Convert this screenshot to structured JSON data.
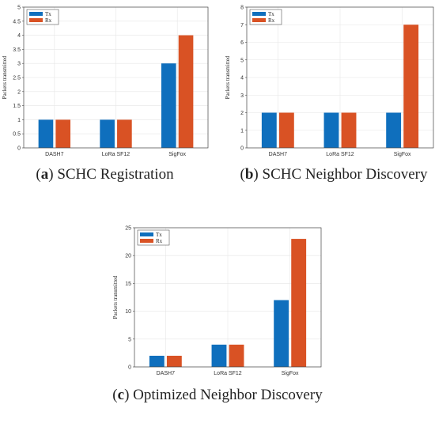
{
  "figure": {
    "panels": [
      {
        "letter": "a",
        "caption_text": "SCHC Registration"
      },
      {
        "letter": "b",
        "caption_text": "SCHC Neighbor Discovery"
      },
      {
        "letter": "c",
        "caption_text": "Optimized Neighbor Discovery"
      }
    ]
  },
  "colors": {
    "tx": "#0f6fbd",
    "rx": "#d95224",
    "grid": "#e6e6e6",
    "axis": "#444444"
  },
  "chart_data": [
    {
      "type": "bar",
      "categories": [
        "DASH7",
        "LoRa SF12",
        "SigFox"
      ],
      "series": [
        {
          "name": "Tx",
          "values": [
            1,
            1,
            3
          ]
        },
        {
          "name": "Rx",
          "values": [
            1,
            1,
            4
          ]
        }
      ],
      "ylabel": "Packets transmitted",
      "ylim": [
        0,
        5
      ],
      "yticks": [
        "0",
        "0.5",
        "1",
        "1.5",
        "2",
        "2.5",
        "3",
        "3.5",
        "4",
        "4.5",
        "5"
      ],
      "grid": true,
      "legend": "top-left"
    },
    {
      "type": "bar",
      "categories": [
        "DASH7",
        "LoRa SF12",
        "SigFox"
      ],
      "series": [
        {
          "name": "Tx",
          "values": [
            2,
            2,
            2
          ]
        },
        {
          "name": "Rx",
          "values": [
            2,
            2,
            7
          ]
        }
      ],
      "ylabel": "Packets transmitted",
      "ylim": [
        0,
        8
      ],
      "yticks": [
        "0",
        "1",
        "2",
        "3",
        "4",
        "5",
        "6",
        "7",
        "8"
      ],
      "grid": true,
      "legend": "top-left"
    },
    {
      "type": "bar",
      "categories": [
        "DASH7",
        "LoRa SF12",
        "SigFox"
      ],
      "series": [
        {
          "name": "Tx",
          "values": [
            2,
            4,
            12
          ]
        },
        {
          "name": "Rx",
          "values": [
            2,
            4,
            23
          ]
        }
      ],
      "ylabel": "Packets transmitted",
      "ylim": [
        0,
        25
      ],
      "yticks": [
        "0",
        "5",
        "10",
        "15",
        "20",
        "25"
      ],
      "grid": true,
      "legend": "top-left"
    }
  ]
}
